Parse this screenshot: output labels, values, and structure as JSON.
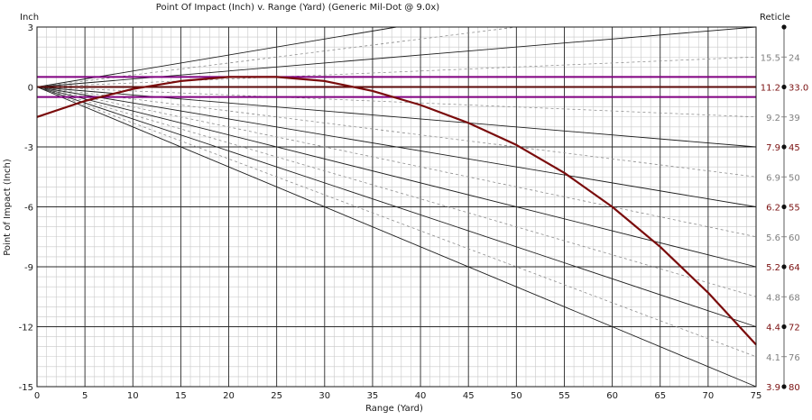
{
  "chart_data": {
    "type": "line",
    "title": "Point Of Impact (Inch) v. Range (Yard) (Generic Mil-Dot @ 9.0x)",
    "xlabel": "Range (Yard)",
    "ylabel": "Point of Impact (Inch)",
    "y_unit_label": "Inch",
    "right_axis_label": "Reticle",
    "xlim": [
      0,
      75
    ],
    "ylim": [
      -15,
      3
    ],
    "x_ticks": [
      0,
      5,
      10,
      15,
      20,
      25,
      30,
      35,
      40,
      45,
      50,
      55,
      60,
      65,
      70,
      75
    ],
    "y_ticks": [
      3,
      0,
      -3,
      -6,
      -9,
      -12,
      -15
    ],
    "grid": true,
    "series": [
      {
        "color": "#7a0c0c",
        "x": [
          0,
          5,
          10,
          15,
          20,
          25,
          30,
          35,
          40,
          45,
          50,
          55,
          60,
          65,
          70,
          75
        ],
        "y": [
          -1.5,
          -0.7,
          -0.1,
          0.3,
          0.5,
          0.5,
          0.3,
          -0.2,
          -0.9,
          -1.8,
          -2.9,
          -4.3,
          -6.0,
          -8.0,
          -10.3,
          -12.9
        ]
      }
    ],
    "reticle_lines": [
      {
        "end_x": 37.5,
        "end_y": 3.0,
        "style": "solid"
      },
      {
        "end_x": 50,
        "end_y": 3.0,
        "style": "dashed"
      },
      {
        "end_x": 75,
        "end_y": 3.0,
        "style": "solid"
      },
      {
        "end_x": 75,
        "end_y": 1.5,
        "style": "dashed"
      },
      {
        "end_x": 75,
        "end_y": -1.5,
        "style": "dashed"
      },
      {
        "end_x": 75,
        "end_y": -3.0,
        "style": "solid"
      },
      {
        "end_x": 75,
        "end_y": -4.5,
        "style": "dashed"
      },
      {
        "end_x": 75,
        "end_y": -6.0,
        "style": "solid"
      },
      {
        "end_x": 75,
        "end_y": -7.5,
        "style": "dashed"
      },
      {
        "end_x": 75,
        "end_y": -9.0,
        "style": "solid"
      },
      {
        "end_x": 75,
        "end_y": -10.5,
        "style": "dashed"
      },
      {
        "end_x": 75,
        "end_y": -12.0,
        "style": "solid"
      },
      {
        "end_x": 75,
        "end_y": -13.5,
        "style": "dashed"
      },
      {
        "end_x": 75,
        "end_y": -15.0,
        "style": "solid"
      }
    ],
    "horizontal_lines": [
      {
        "y": 0.5,
        "color": "#800080"
      },
      {
        "y": 0,
        "color": "#5c0a0a"
      },
      {
        "y": -0.5,
        "color": "#800080"
      }
    ],
    "reticle_marks": [
      {
        "y": 3.0,
        "range": "",
        "value": "",
        "active": true
      },
      {
        "y": 1.5,
        "range": "15.5",
        "value": "24",
        "active": false
      },
      {
        "y": 0,
        "range": "11.2",
        "value": "33.0",
        "active": true
      },
      {
        "y": -1.5,
        "range": "9.2",
        "value": "39",
        "active": false
      },
      {
        "y": -3.0,
        "range": "7.9",
        "value": "45",
        "active": true
      },
      {
        "y": -4.5,
        "range": "6.9",
        "value": "50",
        "active": false
      },
      {
        "y": -6.0,
        "range": "6.2",
        "value": "55",
        "active": true
      },
      {
        "y": -7.5,
        "range": "5.6",
        "value": "60",
        "active": false
      },
      {
        "y": -9.0,
        "range": "5.2",
        "value": "64",
        "active": true
      },
      {
        "y": -10.5,
        "range": "4.8",
        "value": "68",
        "active": false
      },
      {
        "y": -12.0,
        "range": "4.4",
        "value": "72",
        "active": true
      },
      {
        "y": -13.5,
        "range": "4.1",
        "value": "76",
        "active": false
      },
      {
        "y": -15.0,
        "range": "3.9",
        "value": "80",
        "active": true
      }
    ],
    "colors": {
      "curve": "#7a0c0c",
      "zero_line": "#5c0a0a",
      "band": "#800080",
      "reticle_range": "#7a1010",
      "major_grid": "#2a2a2a",
      "minor_grid": "#c8c8c8"
    }
  }
}
